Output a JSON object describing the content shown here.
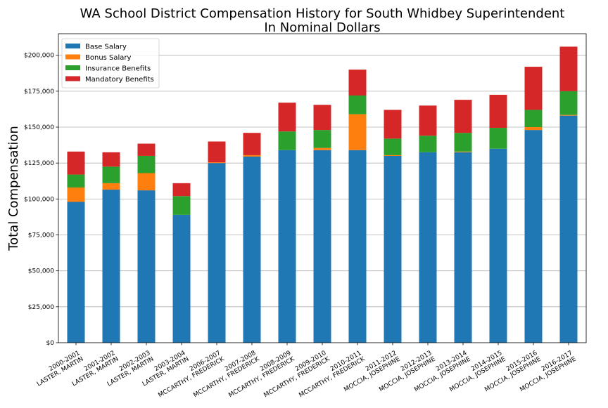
{
  "chart_data": {
    "type": "bar",
    "stacked": true,
    "title": [
      "WA School District Compensation History for South Whidbey Superintendent",
      "In Nominal Dollars"
    ],
    "xlabel": "",
    "ylabel": "Total Compensation",
    "ylim": [
      0,
      215000
    ],
    "yticks": [
      0,
      25000,
      50000,
      75000,
      100000,
      125000,
      150000,
      175000,
      200000
    ],
    "ytick_labels": [
      "$0",
      "$25,000",
      "$50,000",
      "$75,000",
      "$100,000",
      "$125,000",
      "$150,000",
      "$175,000",
      "$200,000"
    ],
    "grid": "horizontal",
    "legend_position": "top-left",
    "categories": [
      [
        "2000-2001",
        "LASTER, MARTIN"
      ],
      [
        "2001-2002",
        "LASTER, MARTIN"
      ],
      [
        "2002-2003",
        "LASTER, MARTIN"
      ],
      [
        "2003-2004",
        "LASTER, MARTIN"
      ],
      [
        "2006-2007",
        "MCCARTHY, FREDERICK"
      ],
      [
        "2007-2008",
        "MCCARTHY, FREDERICK"
      ],
      [
        "2008-2009",
        "MCCARTHY, FREDERICK"
      ],
      [
        "2009-2010",
        "MCCARTHY, FREDERICK"
      ],
      [
        "2010-2011",
        "MCCARTHY, FREDERICK"
      ],
      [
        "2011-2012",
        "MOCCIA, JOSEPHINE"
      ],
      [
        "2012-2013",
        "MOCCIA, JOSEPHINE"
      ],
      [
        "2013-2014",
        "MOCCIA, JOSEPHINE"
      ],
      [
        "2014-2015",
        "MOCCIA, JOSEPHINE"
      ],
      [
        "2015-2016",
        "MOCCIA, JOSEPHINE"
      ],
      [
        "2016-2017",
        "MOCCIA, JOSEPHINE"
      ]
    ],
    "series": [
      {
        "name": "Base Salary",
        "color": "#1f77b4",
        "values": [
          98000,
          106500,
          106000,
          89000,
          125000,
          129500,
          134000,
          134000,
          134000,
          130000,
          132500,
          132500,
          135000,
          148000,
          158000
        ]
      },
      {
        "name": "Bonus Salary",
        "color": "#ff7f0e",
        "values": [
          10000,
          4500,
          12000,
          0,
          500,
          1000,
          0,
          1500,
          25000,
          500,
          0,
          500,
          0,
          2000,
          500
        ]
      },
      {
        "name": "Insurance Benefits",
        "color": "#2ca02c",
        "values": [
          9000,
          11500,
          12000,
          13000,
          0,
          0,
          13000,
          12500,
          13000,
          11500,
          11500,
          13000,
          14500,
          12000,
          16500
        ]
      },
      {
        "name": "Mandatory Benefits",
        "color": "#d62728",
        "values": [
          16000,
          10000,
          8500,
          9000,
          14500,
          15500,
          20000,
          17500,
          18000,
          20000,
          21000,
          23000,
          23000,
          30000,
          31000
        ]
      }
    ]
  }
}
